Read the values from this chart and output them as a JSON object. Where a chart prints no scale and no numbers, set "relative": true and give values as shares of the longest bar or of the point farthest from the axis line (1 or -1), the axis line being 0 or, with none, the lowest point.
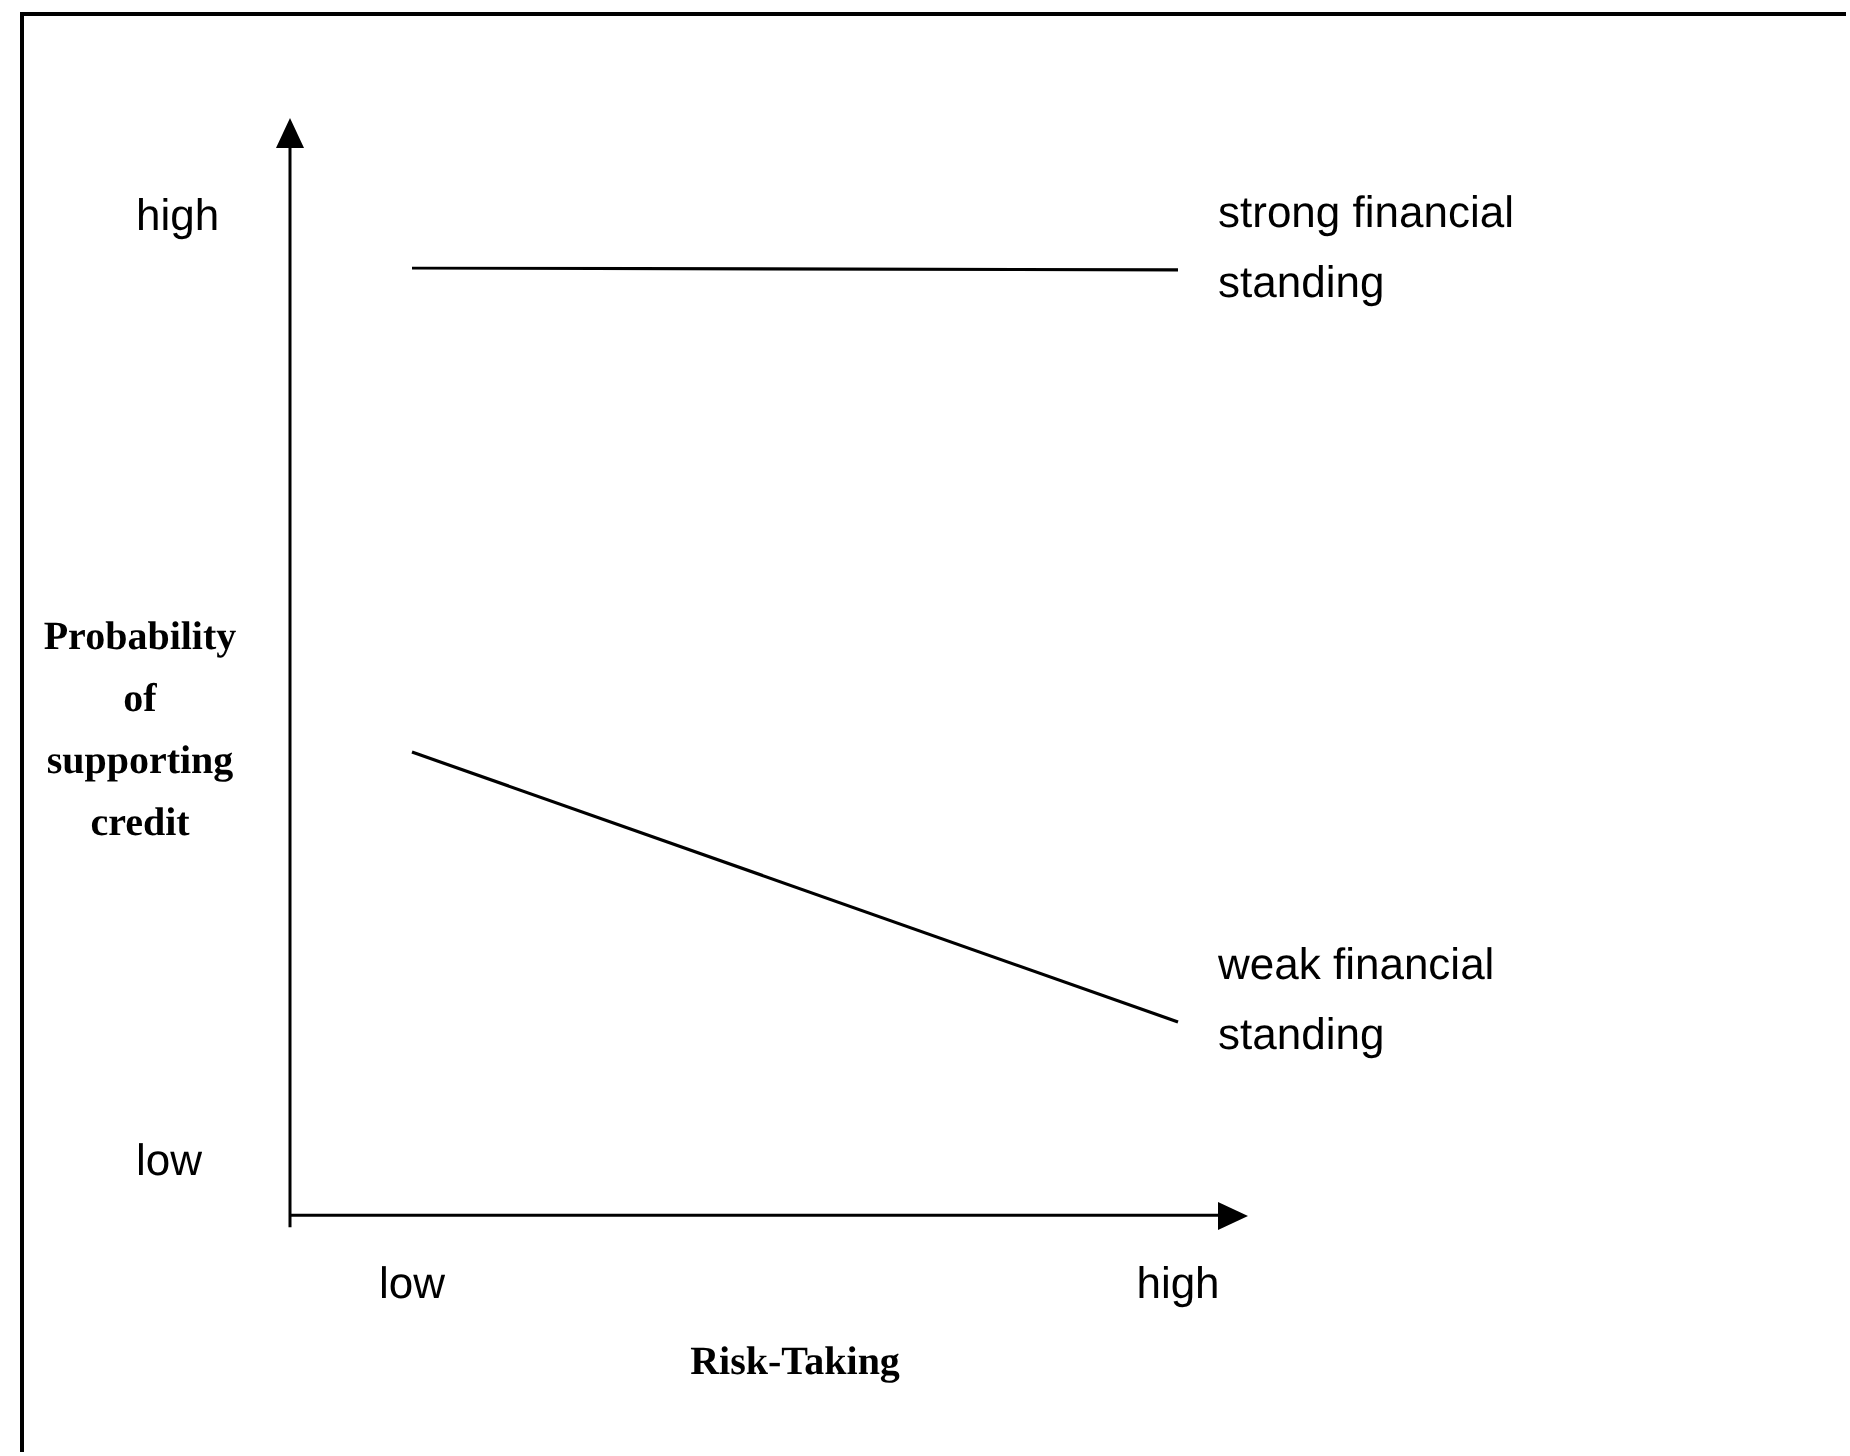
{
  "chart_data": {
    "type": "line",
    "relative": true,
    "xlabel": "Risk-Taking",
    "ylabel": "Probability of supporting credit",
    "categories": [
      "low",
      "high"
    ],
    "series": [
      {
        "name": "strong financial standing",
        "color": "#000000",
        "values": [
          1,
          0.998
        ]
      },
      {
        "name": "weak financial standing",
        "color": "#000000",
        "values": [
          0.489,
          0.204
        ]
      }
    ],
    "annotations": [
      "high",
      "low"
    ],
    "legend": false,
    "grid": false,
    "marker": "none",
    "line_style": "solid"
  }
}
